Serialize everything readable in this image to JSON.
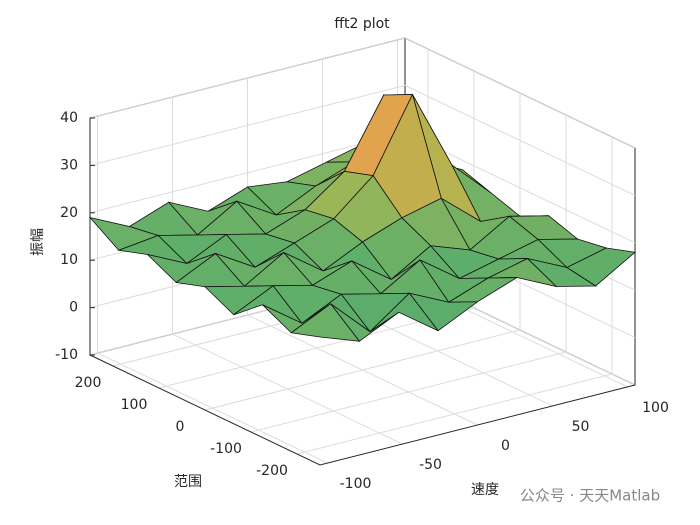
{
  "chart_data": {
    "type": "surface",
    "title": "fft2 plot",
    "xlabel": "范围",
    "ylabel": "速度",
    "zlabel": "振幅",
    "x": [
      -250,
      -187.5,
      -125,
      -62.5,
      0,
      62.5,
      125,
      187.5,
      250
    ],
    "y": [
      -105,
      -78.75,
      -52.5,
      -26.25,
      0,
      26.25,
      52.5,
      78.75,
      105
    ],
    "z": [
      [
        17,
        14,
        18,
        12,
        16,
        19,
        15,
        13,
        18
      ],
      [
        15,
        19,
        11,
        17,
        13,
        16,
        18,
        14,
        16
      ],
      [
        18,
        12,
        16,
        14,
        19,
        13,
        15,
        17,
        15
      ],
      [
        13,
        17,
        15,
        18,
        12,
        17,
        14,
        19,
        17
      ],
      [
        16,
        14,
        19,
        13,
        17,
        20,
        22,
        15,
        14
      ],
      [
        14,
        18,
        13,
        16,
        19,
        26,
        41,
        24,
        16
      ],
      [
        17,
        13,
        17,
        15,
        18,
        24,
        38,
        22,
        18
      ],
      [
        15,
        16,
        14,
        19,
        14,
        18,
        21,
        17,
        15
      ],
      [
        19,
        15,
        18,
        14,
        17,
        16,
        18,
        20,
        19
      ]
    ],
    "xlim": [
      -250,
      250
    ],
    "ylim": [
      -105,
      105
    ],
    "zlim": [
      -10,
      40
    ],
    "xticks": [
      -200,
      -100,
      0,
      100,
      200
    ],
    "yticks": [
      -100,
      -50,
      0,
      50,
      100
    ],
    "zticks": [
      -10,
      0,
      10,
      20,
      30,
      40
    ],
    "grid": true,
    "colormap": [
      "#0d4a5a",
      "#127a7a",
      "#2a9a88",
      "#5fae6a",
      "#a9b852",
      "#e0a24a",
      "#f0b070"
    ],
    "annotation": "公众号 · 天天Matlab"
  }
}
